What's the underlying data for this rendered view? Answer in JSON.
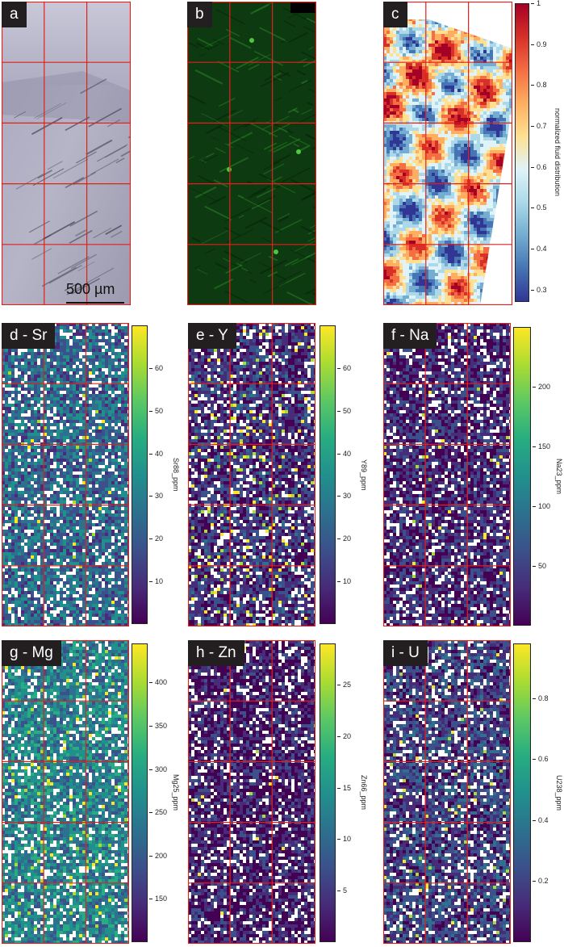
{
  "panels": {
    "a": {
      "label": "a",
      "scalebar": "500 µm"
    },
    "b": {
      "label": "b"
    },
    "c": {
      "label": "c",
      "colorbar": {
        "title": "normalized fluid distribution",
        "ticks": [
          "1",
          "0.9",
          "0.8",
          "0.7",
          "0.6",
          "0.5",
          "0.4",
          "0.3"
        ],
        "range": [
          0.27,
          1.0
        ]
      }
    },
    "d": {
      "label": "d - Sr",
      "colorbar": {
        "title": "Sr88_ppm",
        "ticks": [
          "60",
          "50",
          "40",
          "30",
          "20",
          "10"
        ],
        "range": [
          0,
          70
        ]
      }
    },
    "e": {
      "label": "e - Y",
      "colorbar": {
        "title": "Y89_ppm",
        "ticks": [
          "60",
          "50",
          "40",
          "30",
          "20",
          "10"
        ],
        "range": [
          0,
          70
        ]
      }
    },
    "f": {
      "label": "f - Na",
      "colorbar": {
        "title": "Na23_ppm",
        "ticks": [
          "200",
          "150",
          "100",
          "50"
        ],
        "range": [
          0,
          250
        ]
      }
    },
    "g": {
      "label": "g - Mg",
      "colorbar": {
        "title": "Mg25_ppm",
        "ticks": [
          "400",
          "350",
          "300",
          "250",
          "200",
          "150"
        ],
        "range": [
          100,
          445
        ]
      }
    },
    "h": {
      "label": "h - Zn",
      "colorbar": {
        "title": "Zn66_ppm",
        "ticks": [
          "25",
          "20",
          "15",
          "10",
          "5"
        ],
        "range": [
          0,
          29
        ]
      }
    },
    "i": {
      "label": "i - U",
      "colorbar": {
        "title": "U238_ppm",
        "ticks": [
          "0.8",
          "0.6",
          "0.4",
          "0.2"
        ],
        "range": [
          0,
          0.98
        ]
      }
    }
  },
  "colors": {
    "grid_line": "#e0201b",
    "viridis": [
      "#440154",
      "#472c7a",
      "#3b518b",
      "#2c718e",
      "#21908d",
      "#27ad81",
      "#5cc863",
      "#aadc32",
      "#fde725"
    ],
    "rdylbu": [
      "#313695",
      "#4575b4",
      "#74add1",
      "#abd9e9",
      "#e0f3f8",
      "#fee090",
      "#fdae61",
      "#f46d43",
      "#d73027",
      "#a50026"
    ]
  }
}
